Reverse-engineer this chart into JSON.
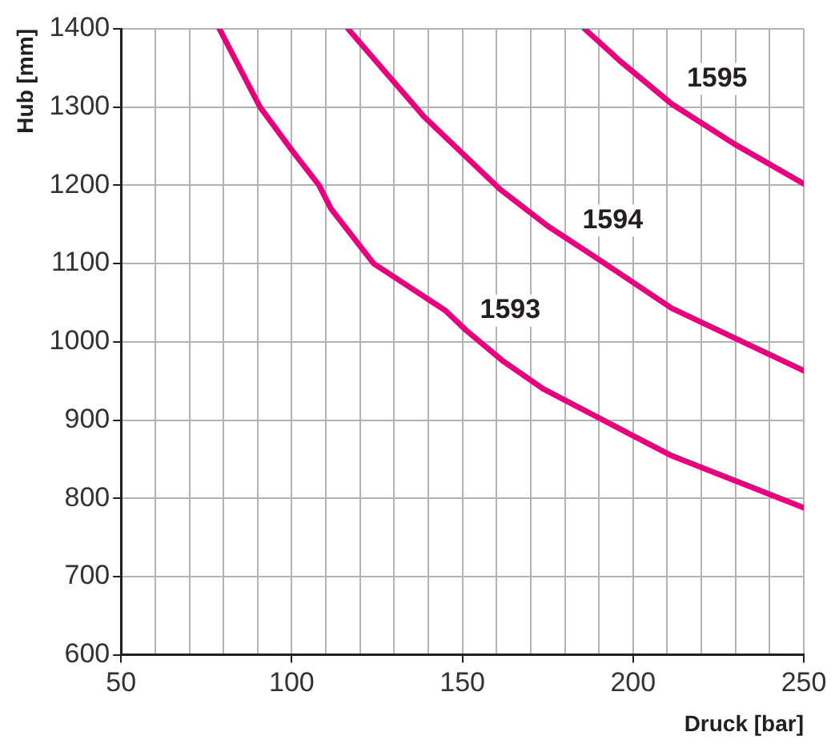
{
  "chart_data": {
    "type": "line",
    "xlabel": "Druck [bar]",
    "ylabel": "Hub [mm]",
    "xlim": [
      50,
      250
    ],
    "ylim": [
      600,
      1400
    ],
    "xticks": [
      50,
      {
        "value": 60,
        "label": null
      },
      {
        "value": 70,
        "label": null
      },
      {
        "value": 80,
        "label": null
      },
      {
        "value": 90,
        "label": null
      },
      100,
      {
        "value": 110,
        "label": null
      },
      {
        "value": 120,
        "label": null
      },
      {
        "value": 130,
        "label": null
      },
      {
        "value": 140,
        "label": null
      },
      150,
      {
        "value": 160,
        "label": null
      },
      {
        "value": 170,
        "label": null
      },
      {
        "value": 180,
        "label": null
      },
      {
        "value": 190,
        "label": null
      },
      200,
      {
        "value": 210,
        "label": null
      },
      {
        "value": 220,
        "label": null
      },
      {
        "value": 230,
        "label": null
      },
      {
        "value": 240,
        "label": null
      },
      250
    ],
    "yticks": [
      600,
      700,
      800,
      900,
      1000,
      1100,
      1200,
      1300,
      1400
    ],
    "grid": true,
    "marker": "none",
    "line_style": "solid",
    "series": [
      {
        "color": "#e6007e",
        "x": [
          78.8,
          90.7,
          100,
          108,
          111.5,
          124,
          145,
          151,
          162,
          173.6,
          200,
          211,
          250
        ],
        "values": [
          1400,
          1300,
          1245,
          1200,
          1170,
          1100,
          1040,
          1015,
          975,
          940,
          880,
          855,
          788
        ]
      },
      {
        "color": "#e6007e",
        "x": [
          116.5,
          125.4,
          138.7,
          161,
          175,
          188.3,
          211.3,
          250
        ],
        "values": [
          1400,
          1355,
          1288,
          1195,
          1148,
          1110,
          1043,
          963
        ]
      },
      {
        "color": "#e6007e",
        "x": [
          185.8,
          196.4,
          211.3,
          229.6,
          250
        ],
        "values": [
          1400,
          1358,
          1304,
          1253,
          1202
        ]
      }
    ],
    "annotations": [
      {
        "text": "1593",
        "x": 164,
        "y": 1040
      },
      {
        "text": "1594",
        "x": 194,
        "y": 1155
      },
      {
        "text": "1595",
        "x": 224.6,
        "y": 1336
      }
    ]
  }
}
